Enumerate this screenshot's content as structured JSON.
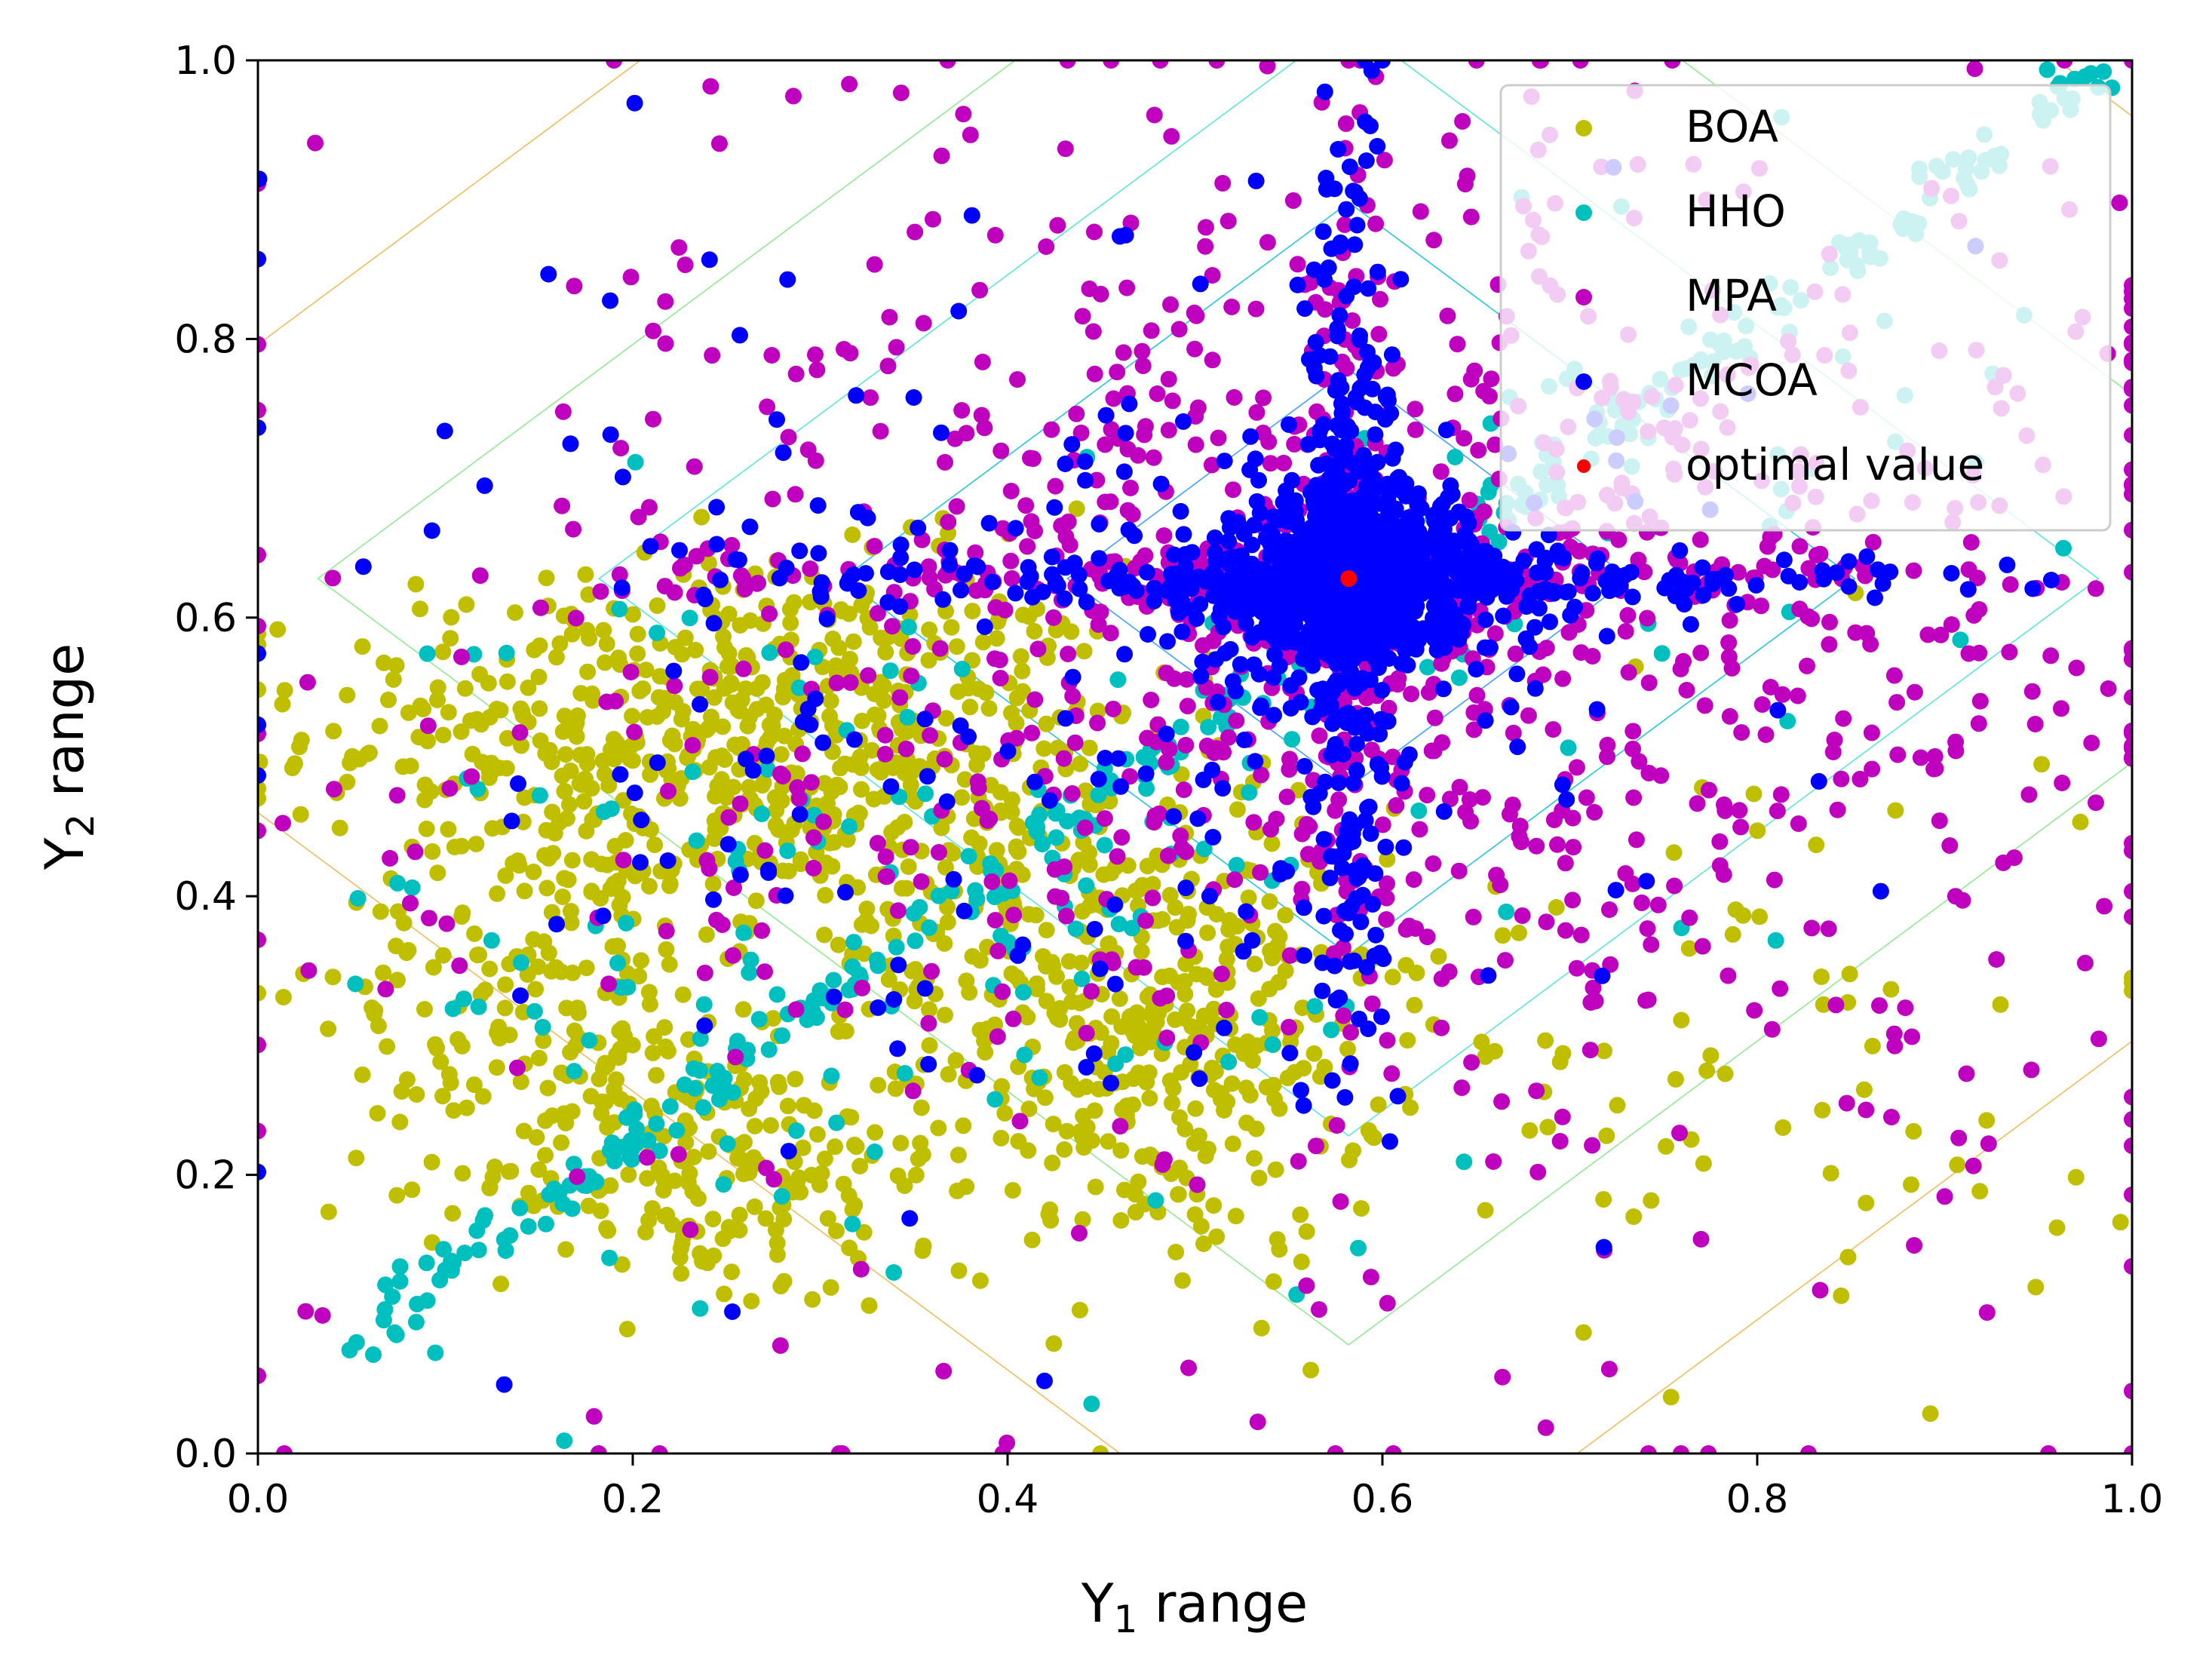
{
  "chart_data": {
    "type": "scatter",
    "title": "",
    "xlabel": {
      "main": "Y",
      "sub": "1",
      "rest": " range"
    },
    "ylabel": {
      "main": "Y",
      "sub": "2",
      "rest": " range"
    },
    "xlim": [
      0.0,
      1.0
    ],
    "ylim": [
      0.0,
      1.0
    ],
    "xticks": [
      0.0,
      0.2,
      0.4,
      0.6,
      0.8,
      1.0
    ],
    "yticks": [
      0.0,
      0.2,
      0.4,
      0.6,
      0.8,
      1.0
    ],
    "xtick_labels": [
      "0.0",
      "0.2",
      "0.4",
      "0.6",
      "0.8",
      "1.0"
    ],
    "ytick_labels": [
      "0.0",
      "0.2",
      "0.4",
      "0.6",
      "0.8",
      "1.0"
    ],
    "grid": false,
    "legend_position": "top-right",
    "optimal_value": {
      "x": 0.582,
      "y": 0.628
    },
    "contour_levels": [
      {
        "offset": 0.05,
        "color": "#1e90ff"
      },
      {
        "offset": 0.15,
        "color": "#1e90ff"
      },
      {
        "offset": 0.27,
        "color": "#00bcd4"
      },
      {
        "offset": 0.4,
        "color": "#40e0d0"
      },
      {
        "offset": 0.55,
        "color": "#7fe57f"
      },
      {
        "offset": 0.75,
        "color": "#f0b040"
      }
    ],
    "series": [
      {
        "name": "BOA",
        "color": "#bfbf00",
        "clusters": [
          {
            "cx": 0.25,
            "cy": 0.52,
            "sx": 0.11,
            "sy": 0.06,
            "n": 520
          },
          {
            "cx": 0.48,
            "cy": 0.3,
            "sx": 0.06,
            "sy": 0.08,
            "n": 360
          },
          {
            "cx": 0.24,
            "cy": 0.2,
            "sx": 0.06,
            "sy": 0.05,
            "n": 170
          },
          {
            "cx": 0.16,
            "cy": 0.34,
            "sx": 0.06,
            "sy": 0.07,
            "n": 180
          },
          {
            "cx": 0.35,
            "cy": 0.42,
            "sx": 0.08,
            "sy": 0.1,
            "n": 220
          },
          {
            "cx": 0.78,
            "cy": 0.3,
            "sx": 0.12,
            "sy": 0.12,
            "n": 80
          }
        ],
        "diagonal": null
      },
      {
        "name": "HHO",
        "color": "#00bfbf",
        "clusters": [
          {
            "cx": 0.35,
            "cy": 0.38,
            "sx": 0.16,
            "sy": 0.14,
            "n": 140
          },
          {
            "cx": 0.75,
            "cy": 0.72,
            "sx": 0.1,
            "sy": 0.1,
            "n": 40
          }
        ],
        "diagonal": {
          "x0": 0.05,
          "y0": 0.08,
          "x1": 0.98,
          "y1": 0.99,
          "n": 330,
          "spread": 0.008
        }
      },
      {
        "name": "MPA",
        "color": "#bf00bf",
        "clusters": [
          {
            "cx": 0.6,
            "cy": 0.6,
            "sx": 0.2,
            "sy": 0.18,
            "n": 820
          },
          {
            "cx": 0.5,
            "cy": 0.5,
            "sx": 0.28,
            "sy": 0.28,
            "n": 260
          }
        ],
        "cross": {
          "x": 0.582,
          "y": 0.628,
          "n": 300
        },
        "diagonal": null
      },
      {
        "name": "MCOA",
        "color": "#0000ff",
        "clusters": [
          {
            "cx": 0.582,
            "cy": 0.628,
            "sx": 0.035,
            "sy": 0.035,
            "n": 750
          },
          {
            "cx": 0.45,
            "cy": 0.55,
            "sx": 0.18,
            "sy": 0.17,
            "n": 240
          }
        ],
        "cross": {
          "x": 0.582,
          "y": 0.628,
          "n": 520
        },
        "diagonal": null
      }
    ],
    "legend": [
      {
        "label": "BOA",
        "color": "#bfbf00"
      },
      {
        "label": "HHO",
        "color": "#00bfbf"
      },
      {
        "label": "MPA",
        "color": "#bf00bf"
      },
      {
        "label": "MCOA",
        "color": "#0000ff"
      },
      {
        "label": "optimal value",
        "color": "#ff0000"
      }
    ]
  }
}
